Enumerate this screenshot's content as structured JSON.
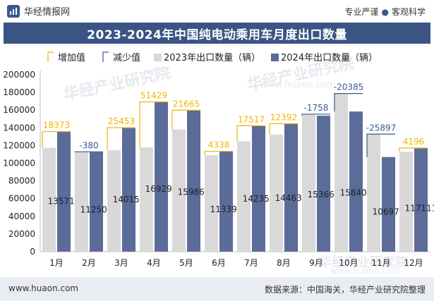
{
  "header": {
    "brand": "华经情报网",
    "slogan_left": "专业严谨",
    "slogan_sep": "●",
    "slogan_right": "客观科学"
  },
  "footer": {
    "url": "www.huaon.com",
    "source": "数据来源：中国海关，华经产业研究院整理"
  },
  "colors": {
    "increase": "#f0b400",
    "decrease": "#3a5a8c",
    "bar2023": "#d9d9d9",
    "bar2024": "#5b6b9a",
    "title_bg": "#3a5484"
  },
  "chart_data": {
    "type": "bar",
    "title": "2023-2024年中国纯电动乘用车月度出口数量",
    "categories": [
      "1月",
      "2月",
      "3月",
      "4月",
      "5月",
      "6月",
      "7月",
      "8月",
      "9月",
      "10月",
      "11月",
      "12月"
    ],
    "series": [
      {
        "name": "2023年出口数量（辆）",
        "values": [
          117346,
          112882,
          114701,
          117869,
          138197,
          109053,
          124838,
          132247,
          155418,
          178794,
          132868,
          112915
        ]
      },
      {
        "name": "2024年出口数量（辆）",
        "values": [
          135719,
          112502,
          140154,
          169298,
          159862,
          113391,
          142355,
          144639,
          153660,
          158409,
          106971,
          117111
        ]
      }
    ],
    "changes": [
      18373,
      -380,
      25453,
      51429,
      21665,
      4338,
      17517,
      12392,
      -1758,
      -20385,
      -25897,
      4196
    ],
    "legend": [
      {
        "key": "increase",
        "label": "增加值"
      },
      {
        "key": "decrease",
        "label": "减少值"
      },
      {
        "key": "bar2023",
        "label": "2023年出口数量（辆）"
      },
      {
        "key": "bar2024",
        "label": "2024年出口数量（辆）"
      }
    ],
    "yticks": [
      0,
      20000,
      40000,
      60000,
      80000,
      100000,
      120000,
      140000,
      160000,
      180000,
      200000
    ],
    "ylim": [
      0,
      200000
    ],
    "legend_position": "top-left",
    "grid": false
  },
  "watermarks": [
    "华经产业研究院",
    "www.huaon.com"
  ]
}
